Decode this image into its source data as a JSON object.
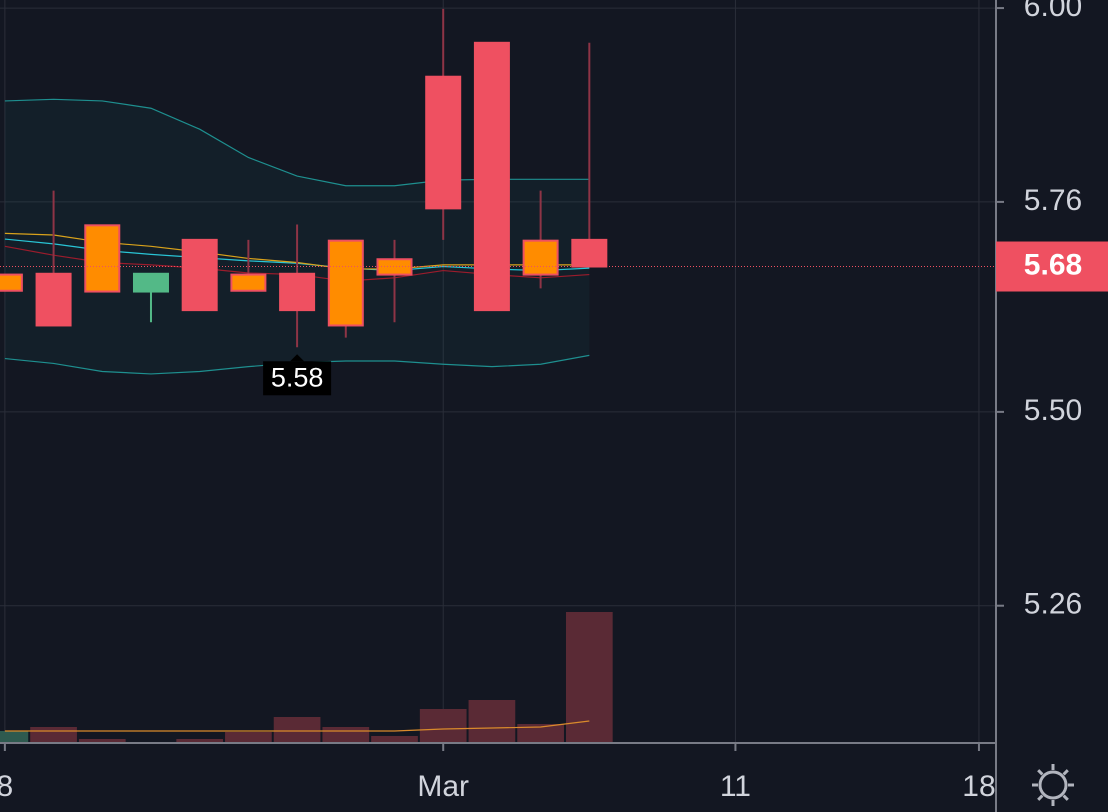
{
  "chart_data": {
    "type": "candlestick",
    "x": [
      0,
      1,
      2,
      3,
      4,
      5,
      6,
      7,
      8,
      9,
      10,
      11,
      12
    ],
    "open": [
      5.67,
      5.671,
      5.731,
      5.649,
      5.713,
      5.67,
      5.671,
      5.712,
      5.689,
      5.915,
      5.957,
      5.712,
      5.713
    ],
    "high": [
      5.67,
      5.774,
      5.731,
      5.671,
      5.713,
      5.713,
      5.732,
      5.712,
      5.713,
      5.999,
      5.957,
      5.774,
      5.957
    ],
    "low": [
      5.65,
      5.607,
      5.649,
      5.611,
      5.626,
      5.65,
      5.58,
      5.592,
      5.611,
      5.713,
      5.626,
      5.653,
      5.68
    ],
    "close": [
      5.65,
      5.607,
      5.649,
      5.671,
      5.626,
      5.65,
      5.626,
      5.607,
      5.67,
      5.752,
      5.626,
      5.67,
      5.68
    ],
    "colors": [
      "#ff8c00",
      "#ef5061",
      "#ff8c00",
      "#53b987",
      "#ef5061",
      "#ff8c00",
      "#ef5061",
      "#ff8c00",
      "#ff8c00",
      "#ef5061",
      "#ef5061",
      "#ff8c00",
      "#ef5061"
    ],
    "lines": [
      {
        "color": "#1e8f8f",
        "values": [
          5.885,
          5.887,
          5.885,
          5.876,
          5.85,
          5.815,
          5.792,
          5.78,
          5.78,
          5.787,
          5.788,
          5.788,
          5.788
        ]
      },
      {
        "color": "#1e8f8f",
        "values": [
          5.566,
          5.56,
          5.55,
          5.547,
          5.55,
          5.556,
          5.561,
          5.563,
          5.563,
          5.559,
          5.556,
          5.559,
          5.57
        ]
      },
      {
        "color": "#29c5d6",
        "values": [
          5.714,
          5.708,
          5.7,
          5.695,
          5.691,
          5.687,
          5.684,
          5.678,
          5.675,
          5.68,
          5.677,
          5.675,
          5.678
        ]
      },
      {
        "color": "#d9a21b",
        "values": [
          5.721,
          5.719,
          5.71,
          5.705,
          5.698,
          5.69,
          5.685,
          5.677,
          5.677,
          5.682,
          5.682,
          5.682,
          5.682
        ]
      },
      {
        "color": "#9b1c2c",
        "values": [
          5.705,
          5.694,
          5.685,
          5.682,
          5.678,
          5.672,
          5.67,
          5.662,
          5.666,
          5.675,
          5.67,
          5.666,
          5.67
        ]
      }
    ],
    "volume": [
      12,
      16,
      4,
      0,
      4,
      11,
      26,
      16,
      7,
      34,
      43,
      19,
      131
    ],
    "volume_colors": [
      "#2e5a4f",
      "#5a2a35",
      "#5a2a35",
      "#2e5a4f",
      "#5a2a35",
      "#5a2a35",
      "#5a2a35",
      "#5a2a35",
      "#5a2a35",
      "#5a2a35",
      "#5a2a35",
      "#5a2a35",
      "#5a2a35"
    ],
    "volume_ma": [
      12,
      12,
      12,
      12,
      12,
      12,
      12,
      12,
      12,
      14,
      15,
      16,
      22
    ],
    "volume_ma_color": "#d98a2b",
    "volume_lim": [
      0,
      150
    ],
    "xlim": [
      -0.1,
      20.35
    ],
    "xticks": [
      {
        "value": 0,
        "label": "8"
      },
      {
        "value": 9,
        "label": "Mar"
      },
      {
        "value": 15,
        "label": "11"
      },
      {
        "value": 20,
        "label": "18"
      }
    ],
    "ylim": [
      5.09,
      6.01
    ],
    "yticks": [
      {
        "value": 6,
        "label": "6.00"
      },
      5.76,
      {
        "value": 5.5,
        "label": "5.50"
      },
      5.26
    ],
    "grid": true,
    "last_price": 5.68,
    "last_price_color": "#ef5061",
    "low_marker": 5.58,
    "low_marker_index": 6
  }
}
